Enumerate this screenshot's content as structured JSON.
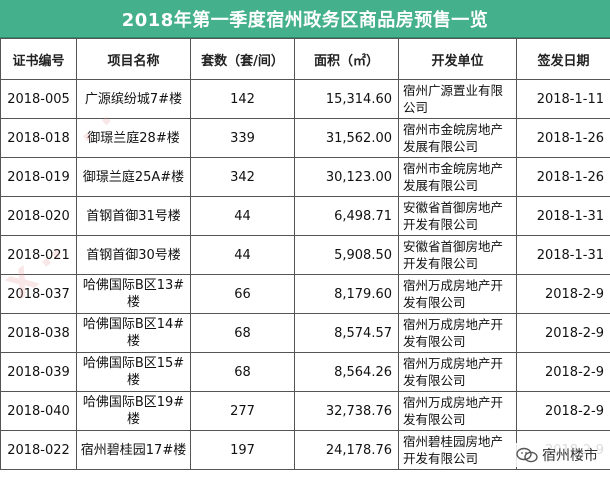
{
  "title": "2018年第一季度宿州政务区商品房预售一览",
  "columns": [
    "证书编号",
    "项目名称",
    "套数（套/间）",
    "面积（㎡）",
    "开发单位",
    "签发日期"
  ],
  "rows": [
    {
      "cert": "2018-005",
      "project": "广源缤纷城7#楼",
      "units": "142",
      "area": "15,314.60",
      "developer": "宿州广源置业有限公司",
      "date": "2018-1-11"
    },
    {
      "cert": "2018-018",
      "project": "御璟兰庭28#楼",
      "units": "339",
      "area": "31,562.00",
      "developer": "宿州市金皖房地产发展有限公司",
      "date": "2018-1-26"
    },
    {
      "cert": "2018-019",
      "project": "御璟兰庭25A#楼",
      "units": "342",
      "area": "30,123.00",
      "developer": "宿州市金皖房地产发展有限公司",
      "date": "2018-1-26"
    },
    {
      "cert": "2018-020",
      "project": "首钢首御31号楼",
      "units": "44",
      "area": "6,498.71",
      "developer": "安徽省首御房地产开发有限公司",
      "date": "2018-1-31"
    },
    {
      "cert": "2018-021",
      "project": "首钢首御30号楼",
      "units": "44",
      "area": "5,908.50",
      "developer": "安徽省首御房地产开发有限公司",
      "date": "2018-1-31"
    },
    {
      "cert": "2018-037",
      "project": "哈佛国际B区13#楼",
      "units": "66",
      "area": "8,179.60",
      "developer": "宿州万成房地产开发有限公司",
      "date": "2018-2-9"
    },
    {
      "cert": "2018-038",
      "project": "哈佛国际B区14#楼",
      "units": "68",
      "area": "8,574.57",
      "developer": "宿州万成房地产开发有限公司",
      "date": "2018-2-9"
    },
    {
      "cert": "2018-039",
      "project": "哈佛国际B区15#楼",
      "units": "68",
      "area": "8,564.26",
      "developer": "宿州万成房地产开发有限公司",
      "date": "2018-2-9"
    },
    {
      "cert": "2018-040",
      "project": "哈佛国际B区19#楼",
      "units": "277",
      "area": "32,738.76",
      "developer": "宿州万成房地产开发有限公司",
      "date": "2018-2-9"
    },
    {
      "cert": "2018-022",
      "project": "宿州碧桂园17#楼",
      "units": "197",
      "area": "24,178.76",
      "developer": "宿州碧桂园房地产开发有限公司",
      "date": "2018-2-9"
    }
  ],
  "brand_label": "宿州楼市",
  "colors": {
    "title_bg": "#45b08c",
    "title_text": "#ffffff",
    "grid": "#555555"
  }
}
